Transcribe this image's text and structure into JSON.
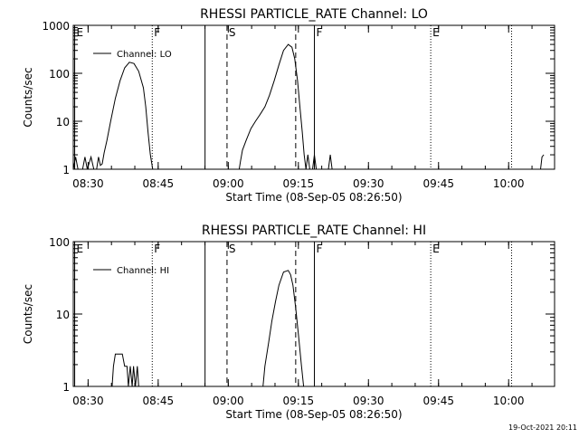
{
  "footer": {
    "timestamp": "19-Oct-2021 20:11"
  },
  "chart_data": [
    {
      "type": "line",
      "title": "RHESSI PARTICLE_RATE Channel: LO",
      "xlabel": "Start Time (08-Sep-05 08:26:50)",
      "ylabel": "Counts/sec",
      "x_unit": "minutes after 08:26:50",
      "xlim": [
        0,
        103
      ],
      "y_scale": "log",
      "ylim": [
        1,
        1000
      ],
      "x_ticks": [
        {
          "x": 3.17,
          "label": "08:30"
        },
        {
          "x": 18.17,
          "label": "08:45"
        },
        {
          "x": 33.17,
          "label": "09:00"
        },
        {
          "x": 48.17,
          "label": "09:15"
        },
        {
          "x": 63.17,
          "label": "09:30"
        },
        {
          "x": 78.17,
          "label": "09:45"
        },
        {
          "x": 93.17,
          "label": "10:00"
        }
      ],
      "y_ticks": [
        {
          "y": 1,
          "label": "1"
        },
        {
          "y": 10,
          "label": "10"
        },
        {
          "y": 100,
          "label": "100"
        },
        {
          "y": 1000,
          "label": "1000"
        }
      ],
      "legend": {
        "label": "Channel: LO",
        "placement": "top-left"
      },
      "grid": false,
      "markers": [
        {
          "x": 0.3,
          "style": "solid",
          "label": "E"
        },
        {
          "x": 16.9,
          "style": "dotted",
          "label": "F"
        },
        {
          "x": 28.2,
          "style": "solid",
          "label": ""
        },
        {
          "x": 32.9,
          "style": "dashed",
          "label": "S"
        },
        {
          "x": 47.6,
          "style": "dashed",
          "label": ""
        },
        {
          "x": 51.6,
          "style": "solid",
          "label": "F"
        },
        {
          "x": 76.5,
          "style": "dotted",
          "label": "E"
        },
        {
          "x": 93.8,
          "style": "dotted",
          "label": ""
        }
      ],
      "series": [
        {
          "name": "",
          "segments": [
            [
              [
                0,
                1
              ],
              [
                0.5,
                1.8
              ],
              [
                1,
                1
              ],
              [
                2,
                1
              ],
              [
                2.5,
                1.8
              ],
              [
                3,
                1
              ],
              [
                3.8,
                1.8
              ],
              [
                4.4,
                1
              ],
              [
                5,
                1
              ],
              [
                5.4,
                1.8
              ],
              [
                5.8,
                1.2
              ],
              [
                6.2,
                1.3
              ],
              [
                6.6,
                2.2
              ],
              [
                7.2,
                4
              ],
              [
                8,
                10
              ],
              [
                9,
                30
              ],
              [
                10,
                70
              ],
              [
                11,
                130
              ],
              [
                12,
                170
              ],
              [
                13,
                160
              ],
              [
                14,
                110
              ],
              [
                15,
                50
              ],
              [
                15.5,
                20
              ],
              [
                16,
                6
              ],
              [
                16.5,
                2
              ],
              [
                17,
                1
              ]
            ],
            [
              [
                35.5,
                1
              ],
              [
                35.8,
                1.5
              ],
              [
                36.2,
                2.5
              ],
              [
                37,
                4
              ],
              [
                38,
                7
              ],
              [
                39,
                10
              ],
              [
                40,
                14
              ],
              [
                41,
                20
              ],
              [
                42,
                35
              ],
              [
                43,
                70
              ],
              [
                44,
                150
              ],
              [
                45,
                300
              ],
              [
                46,
                400
              ],
              [
                46.8,
                350
              ],
              [
                47.4,
                200
              ],
              [
                48,
                70
              ],
              [
                48.5,
                20
              ],
              [
                49,
                6
              ],
              [
                49.4,
                2
              ],
              [
                49.8,
                1
              ],
              [
                50.2,
                2
              ],
              [
                50.6,
                1
              ],
              [
                51.2,
                1
              ],
              [
                51.6,
                2
              ],
              [
                52,
                1
              ]
            ],
            [
              [
                54.6,
                1
              ],
              [
                55,
                2
              ],
              [
                55.4,
                1
              ]
            ],
            [
              [
                100,
                1
              ],
              [
                100.3,
                1.8
              ],
              [
                100.7,
                2
              ]
            ]
          ]
        }
      ]
    },
    {
      "type": "line",
      "title": "RHESSI PARTICLE_RATE Channel: HI",
      "xlabel": "Start Time (08-Sep-05 08:26:50)",
      "ylabel": "Counts/sec",
      "x_unit": "minutes after 08:26:50",
      "xlim": [
        0,
        103
      ],
      "y_scale": "log",
      "ylim": [
        1,
        100
      ],
      "x_ticks": [
        {
          "x": 3.17,
          "label": "08:30"
        },
        {
          "x": 18.17,
          "label": "08:45"
        },
        {
          "x": 33.17,
          "label": "09:00"
        },
        {
          "x": 48.17,
          "label": "09:15"
        },
        {
          "x": 63.17,
          "label": "09:30"
        },
        {
          "x": 78.17,
          "label": "09:45"
        },
        {
          "x": 93.17,
          "label": "10:00"
        }
      ],
      "y_ticks": [
        {
          "y": 1,
          "label": "1"
        },
        {
          "y": 10,
          "label": "10"
        },
        {
          "y": 100,
          "label": "100"
        }
      ],
      "legend": {
        "label": "Channel: HI",
        "placement": "top-left"
      },
      "grid": false,
      "markers": [
        {
          "x": 0.3,
          "style": "solid",
          "label": "E"
        },
        {
          "x": 16.9,
          "style": "dotted",
          "label": "F"
        },
        {
          "x": 28.2,
          "style": "solid",
          "label": ""
        },
        {
          "x": 32.9,
          "style": "dashed",
          "label": "S"
        },
        {
          "x": 47.6,
          "style": "dashed",
          "label": ""
        },
        {
          "x": 51.6,
          "style": "solid",
          "label": "F"
        },
        {
          "x": 76.5,
          "style": "dotted",
          "label": "E"
        },
        {
          "x": 93.8,
          "style": "dotted",
          "label": ""
        }
      ],
      "series": [
        {
          "name": "",
          "segments": [
            [
              [
                8.3,
                1
              ],
              [
                8.6,
                1.9
              ],
              [
                9,
                2.8
              ],
              [
                10.5,
                2.8
              ],
              [
                11,
                1.9
              ],
              [
                11.5,
                1.9
              ],
              [
                11.8,
                1
              ],
              [
                12.2,
                1.9
              ],
              [
                12.6,
                1
              ],
              [
                12.9,
                1.9
              ],
              [
                13.3,
                1
              ],
              [
                13.7,
                1.9
              ],
              [
                14,
                1
              ]
            ],
            [
              [
                40.6,
                1
              ],
              [
                41,
                1.9
              ],
              [
                41.8,
                4
              ],
              [
                42.5,
                8
              ],
              [
                43.3,
                15
              ],
              [
                44,
                25
              ],
              [
                45,
                38
              ],
              [
                46,
                40
              ],
              [
                46.5,
                35
              ],
              [
                47,
                25
              ],
              [
                47.6,
                12
              ],
              [
                48.2,
                5
              ],
              [
                48.8,
                2
              ],
              [
                49.3,
                1
              ]
            ]
          ]
        }
      ]
    }
  ]
}
